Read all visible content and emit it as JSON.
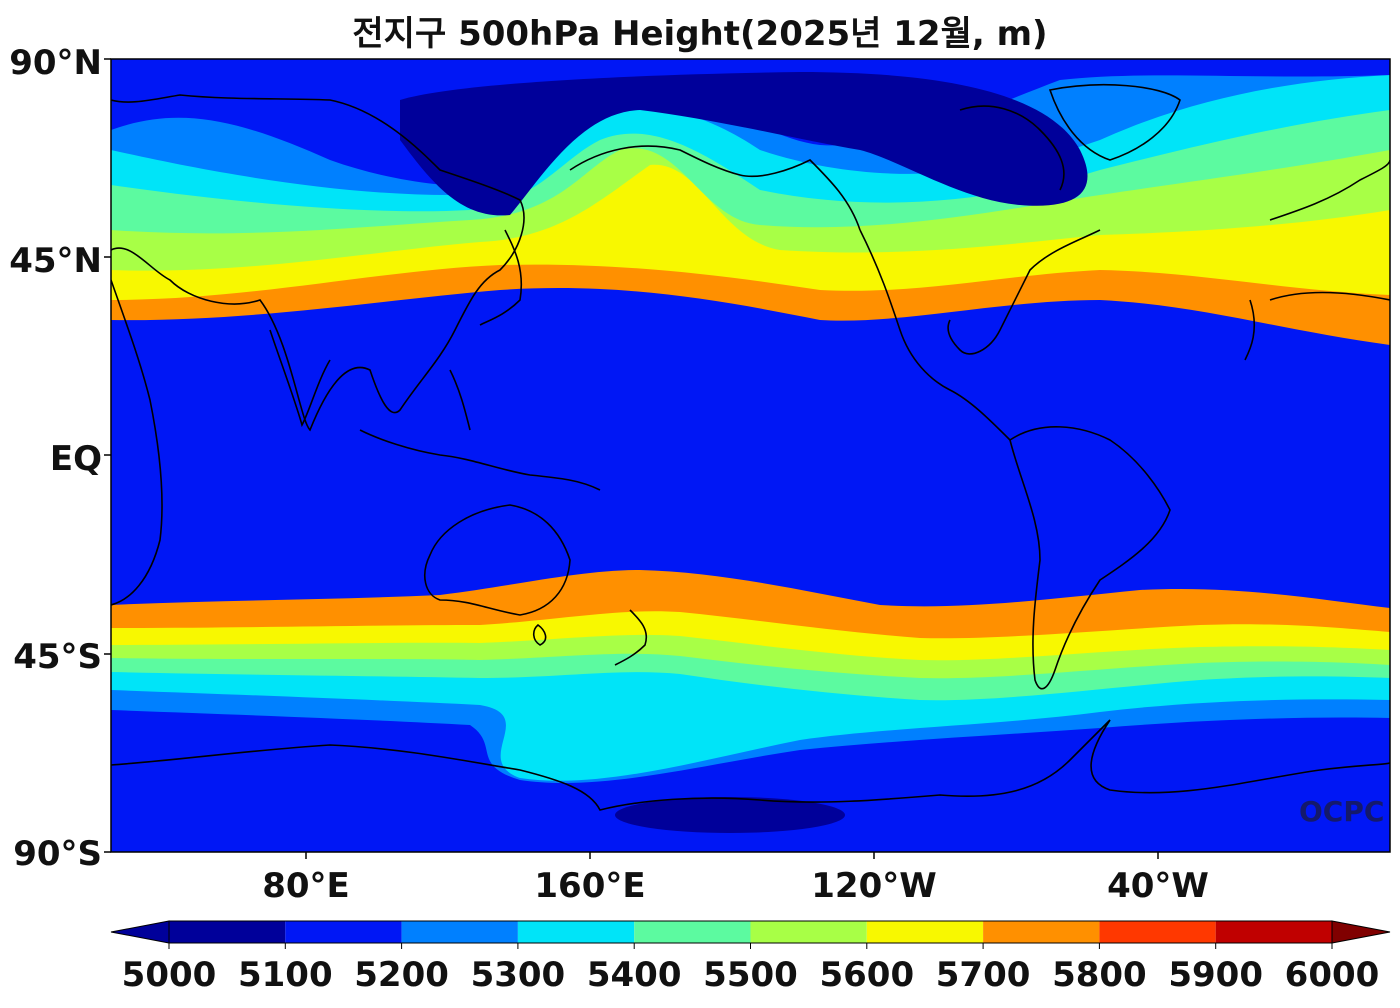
{
  "title": "전지구 500hPa Height(2025년 12월, m)",
  "watermark": "OCPC",
  "axes": {
    "lat_labels": [
      "90°N",
      "45°N",
      "EQ",
      "45°S",
      "90°S"
    ],
    "lon_labels": [
      "80°E",
      "160°E",
      "120°W",
      "40°W"
    ]
  },
  "colorbar": {
    "tick_labels": [
      "5000",
      "5100",
      "5200",
      "5300",
      "5400",
      "5500",
      "5600",
      "5700",
      "5800",
      "5900",
      "6000"
    ],
    "colors": [
      "#00009a",
      "#0017f5",
      "#0080ff",
      "#00e4f8",
      "#5cfaa0",
      "#a8ff46",
      "#f8f800",
      "#ff9000",
      "#ff3800",
      "#c00000",
      "#800000"
    ]
  },
  "map": {
    "projection": "equirectangular, centered ~180°",
    "field": "500hPa geopotential height",
    "units": "m"
  }
}
